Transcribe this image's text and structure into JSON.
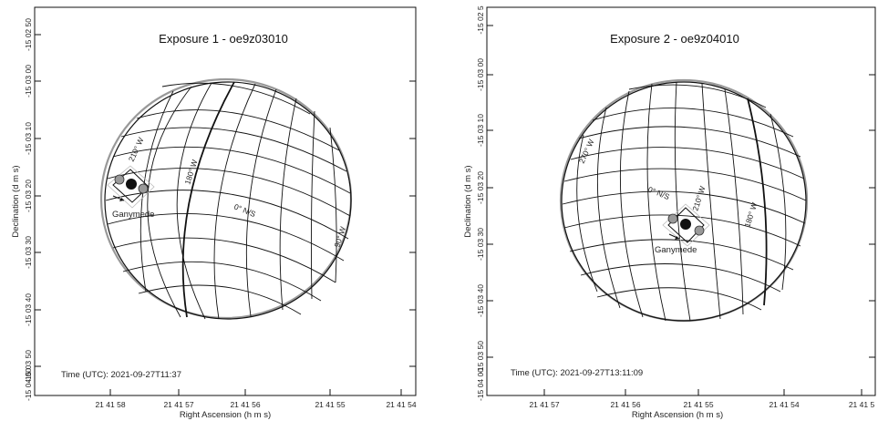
{
  "panels": [
    {
      "id": "exposure-1",
      "title": "Exposure 1 -  oe9z03010",
      "time_label": "Time (UTC): 2021-09-27T11:37",
      "xlabel": "Right Ascension (h m s)",
      "ylabel": "Declination (d m s)",
      "x_ticks": [
        "21 41 58",
        "21 41 57",
        "21 41 56",
        "21 41 55",
        "21 41 54"
      ],
      "y_ticks": [
        "-15 02 50",
        "-15 03 00",
        "-15 03 10",
        "-15 03 20",
        "-15 03 30",
        "-15 03 40",
        "-15 03 50",
        "-15 04 00"
      ],
      "meridian_labels": [
        "210° W",
        "180° W",
        "0° N/S",
        "90° W"
      ],
      "moon_label": "Ganymede"
    },
    {
      "id": "exposure-2",
      "title": "Exposure 2 -  oe9z04010",
      "time_label": "Time (UTC): 2021-09-27T13:11:09",
      "xlabel": "Right Ascension (h m s)",
      "ylabel": "Declination (d m s)",
      "x_ticks": [
        "21 41 57",
        "21 41 56",
        "21 41 55",
        "21 41 54",
        "21 41 5"
      ],
      "y_ticks": [
        "-15 02 5",
        "-15 03 00",
        "-15 03 10",
        "-15 03 20",
        "-15 03 30",
        "-15 03 40",
        "-15 03 50",
        "-15 04 00"
      ],
      "meridian_labels": [
        "270° W",
        "0° N/S",
        "210° W",
        "180° W"
      ],
      "moon_label": "Ganymede"
    }
  ]
}
